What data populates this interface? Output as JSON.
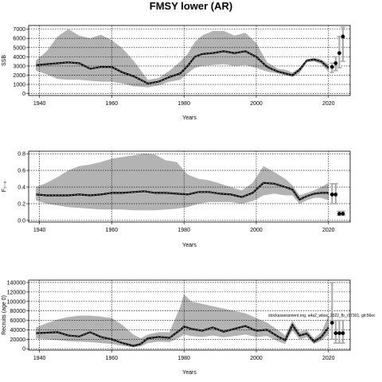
{
  "figure": {
    "title": "FMSY lower (AR)"
  },
  "annotation": "stockassessment.org, a4a2_wbss_2022_fb_r17301, git:56ec",
  "chart_data": [
    {
      "type": "line",
      "xlabel": "Years",
      "ylabel": "SSB",
      "xlim": [
        1937,
        2026
      ],
      "ylim": [
        -200,
        7400
      ],
      "xticks": [
        1940,
        1960,
        1980,
        2000,
        2020
      ],
      "yticks": [
        0,
        1000,
        2000,
        3000,
        4000,
        5000,
        6000,
        7000
      ],
      "grid": true,
      "series": [
        {
          "role": "estimate",
          "x": [
            1939,
            1942,
            1945,
            1948,
            1951,
            1954,
            1957,
            1960,
            1963,
            1966,
            1970,
            1973,
            1976,
            1979,
            1981,
            1983,
            1985,
            1988,
            1991,
            1994,
            1997,
            2000,
            2003,
            2006,
            2008,
            2010,
            2012,
            2014,
            2016,
            2018,
            2020
          ],
          "y": [
            3100,
            3200,
            3300,
            3400,
            3300,
            2700,
            2900,
            2900,
            2300,
            1900,
            1100,
            1300,
            1800,
            2200,
            3000,
            4000,
            4300,
            4400,
            4600,
            4400,
            4600,
            4000,
            2900,
            2400,
            2200,
            2000,
            2600,
            3600,
            3700,
            3500,
            2800
          ]
        },
        {
          "role": "upper",
          "x": [
            1939,
            1942,
            1945,
            1948,
            1951,
            1954,
            1957,
            1960,
            1963,
            1966,
            1970,
            1973,
            1976,
            1979,
            1981,
            1983,
            1985,
            1988,
            1991,
            1994,
            1997,
            2000,
            2003,
            2006,
            2008,
            2010,
            2012,
            2014,
            2016,
            2018,
            2020
          ],
          "y": [
            3600,
            4600,
            6200,
            7000,
            6300,
            6000,
            6400,
            5800,
            4900,
            3600,
            1500,
            1700,
            2500,
            3500,
            4300,
            5600,
            6300,
            6800,
            6800,
            6300,
            6600,
            5500,
            3400,
            2700,
            2600,
            2300,
            2800,
            3700,
            3900,
            3700,
            3200
          ]
        },
        {
          "role": "lower",
          "x": [
            1939,
            1942,
            1945,
            1948,
            1951,
            1954,
            1957,
            1960,
            1963,
            1966,
            1970,
            1973,
            1976,
            1979,
            1981,
            1983,
            1985,
            1988,
            1991,
            1994,
            1997,
            2000,
            2003,
            2006,
            2008,
            2010,
            2012,
            2014,
            2016,
            2018,
            2020
          ],
          "y": [
            2500,
            2100,
            1600,
            1500,
            1500,
            1400,
            1300,
            1300,
            1100,
            800,
            700,
            900,
            1300,
            1500,
            2200,
            2800,
            3000,
            3100,
            3200,
            3000,
            3100,
            2800,
            2400,
            2200,
            2000,
            1800,
            2200,
            3400,
            3500,
            3200,
            2400
          ]
        }
      ],
      "points": [
        {
          "x": 2021,
          "y": 2900,
          "lo": 2300,
          "hi": 3300
        },
        {
          "x": 2022,
          "y": 3300,
          "lo": 2500,
          "hi": 4000
        },
        {
          "x": 2023,
          "y": 4400,
          "lo": 2800,
          "hi": 6200
        },
        {
          "x": 2024,
          "y": 6200,
          "lo": 3500,
          "hi": 7200
        }
      ]
    },
    {
      "type": "line",
      "xlabel": "Years",
      "ylabel": "F₂₋₆",
      "xlim": [
        1937,
        2026
      ],
      "ylim": [
        -0.02,
        0.83
      ],
      "xticks": [
        1940,
        1960,
        1980,
        2000,
        2020
      ],
      "yticks": [
        0.0,
        0.2,
        0.4,
        0.6,
        0.8
      ],
      "grid": true,
      "series": [
        {
          "role": "estimate",
          "x": [
            1939,
            1942,
            1945,
            1948,
            1951,
            1954,
            1957,
            1960,
            1963,
            1966,
            1969,
            1972,
            1975,
            1978,
            1981,
            1984,
            1987,
            1990,
            1993,
            1996,
            1999,
            2002,
            2005,
            2008,
            2010,
            2012,
            2014,
            2016,
            2018,
            2020
          ],
          "y": [
            0.31,
            0.3,
            0.3,
            0.3,
            0.31,
            0.3,
            0.31,
            0.33,
            0.33,
            0.34,
            0.35,
            0.33,
            0.33,
            0.32,
            0.31,
            0.34,
            0.34,
            0.32,
            0.31,
            0.28,
            0.33,
            0.45,
            0.44,
            0.4,
            0.37,
            0.25,
            0.29,
            0.32,
            0.33,
            0.33
          ]
        },
        {
          "role": "upper",
          "x": [
            1939,
            1942,
            1945,
            1948,
            1951,
            1954,
            1957,
            1960,
            1963,
            1966,
            1969,
            1972,
            1975,
            1978,
            1981,
            1984,
            1987,
            1990,
            1993,
            1996,
            1999,
            2002,
            2005,
            2008,
            2010,
            2012,
            2014,
            2016,
            2018,
            2020
          ],
          "y": [
            0.4,
            0.45,
            0.52,
            0.6,
            0.65,
            0.67,
            0.7,
            0.74,
            0.76,
            0.78,
            0.8,
            0.79,
            0.72,
            0.7,
            0.55,
            0.5,
            0.48,
            0.44,
            0.4,
            0.36,
            0.45,
            0.65,
            0.58,
            0.5,
            0.42,
            0.3,
            0.33,
            0.36,
            0.4,
            0.45
          ]
        },
        {
          "role": "lower",
          "x": [
            1939,
            1942,
            1945,
            1948,
            1951,
            1954,
            1957,
            1960,
            1963,
            1966,
            1969,
            1972,
            1975,
            1978,
            1981,
            1984,
            1987,
            1990,
            1993,
            1996,
            1999,
            2002,
            2005,
            2008,
            2010,
            2012,
            2014,
            2016,
            2018,
            2020
          ],
          "y": [
            0.24,
            0.2,
            0.18,
            0.16,
            0.15,
            0.14,
            0.13,
            0.13,
            0.13,
            0.12,
            0.12,
            0.12,
            0.13,
            0.14,
            0.16,
            0.2,
            0.22,
            0.22,
            0.22,
            0.2,
            0.23,
            0.3,
            0.32,
            0.3,
            0.3,
            0.2,
            0.24,
            0.27,
            0.27,
            0.24
          ]
        }
      ],
      "points": [
        {
          "x": 2021,
          "y": 0.31,
          "lo": 0.2,
          "hi": 0.44
        },
        {
          "x": 2022,
          "y": 0.31,
          "lo": 0.2,
          "hi": 0.44
        },
        {
          "x": 2023,
          "y": 0.08,
          "lo": 0.06,
          "hi": 0.11
        },
        {
          "x": 2024,
          "y": 0.08,
          "lo": 0.06,
          "hi": 0.11
        }
      ]
    },
    {
      "type": "line",
      "xlabel": "Years",
      "ylabel": "Recruits (age 0)",
      "xlim": [
        1937,
        2026
      ],
      "ylim": [
        -3000,
        145000
      ],
      "xticks": [
        1940,
        1960,
        1980,
        2000,
        2020
      ],
      "yticks": [
        0,
        20000,
        40000,
        60000,
        80000,
        100000,
        120000,
        140000
      ],
      "grid": true,
      "series": [
        {
          "role": "estimate",
          "x": [
            1939,
            1942,
            1945,
            1948,
            1951,
            1954,
            1957,
            1960,
            1963,
            1966,
            1968,
            1970,
            1973,
            1976,
            1979,
            1980,
            1982,
            1985,
            1988,
            1991,
            1994,
            1997,
            2000,
            2003,
            2006,
            2008,
            2010,
            2012,
            2014,
            2016,
            2018,
            2020
          ],
          "y": [
            33000,
            34000,
            35000,
            28000,
            26000,
            35000,
            25000,
            20000,
            12000,
            6000,
            10000,
            22000,
            25000,
            23000,
            40000,
            47000,
            42000,
            38000,
            45000,
            36000,
            42000,
            48000,
            38000,
            40000,
            26000,
            18000,
            50000,
            28000,
            32000,
            15000,
            25000,
            45000
          ]
        },
        {
          "role": "upper",
          "x": [
            1939,
            1942,
            1945,
            1948,
            1951,
            1954,
            1957,
            1960,
            1963,
            1966,
            1968,
            1970,
            1973,
            1976,
            1979,
            1980,
            1982,
            1985,
            1988,
            1991,
            1994,
            1997,
            2000,
            2003,
            2006,
            2008,
            2010,
            2012,
            2014,
            2016,
            2018,
            2020
          ],
          "y": [
            45000,
            54000,
            62000,
            67000,
            70000,
            70000,
            68000,
            65000,
            50000,
            30000,
            22000,
            30000,
            35000,
            35000,
            90000,
            115000,
            100000,
            95000,
            90000,
            85000,
            80000,
            75000,
            65000,
            55000,
            40000,
            28000,
            60000,
            36000,
            40000,
            22000,
            35000,
            70000
          ]
        },
        {
          "role": "lower",
          "x": [
            1939,
            1942,
            1945,
            1948,
            1951,
            1954,
            1957,
            1960,
            1963,
            1966,
            1968,
            1970,
            1973,
            1976,
            1979,
            1980,
            1982,
            1985,
            1988,
            1991,
            1994,
            1997,
            2000,
            2003,
            2006,
            2008,
            2010,
            2012,
            2014,
            2016,
            2018,
            2020
          ],
          "y": [
            22000,
            20000,
            18000,
            16000,
            15000,
            14000,
            12000,
            10000,
            6000,
            3000,
            5000,
            12000,
            15000,
            14000,
            25000,
            30000,
            27000,
            25000,
            28000,
            24000,
            27000,
            30000,
            25000,
            27000,
            16000,
            10000,
            38000,
            20000,
            24000,
            10000,
            17000,
            30000
          ]
        }
      ],
      "points": [
        {
          "x": 2021,
          "y": 55000,
          "lo": 20000,
          "hi": 140000
        },
        {
          "x": 2022,
          "y": 33000,
          "lo": 12000,
          "hi": 60000
        },
        {
          "x": 2023,
          "y": 33000,
          "lo": 12000,
          "hi": 60000
        },
        {
          "x": 2024,
          "y": 33000,
          "lo": 12000,
          "hi": 60000
        }
      ]
    }
  ]
}
